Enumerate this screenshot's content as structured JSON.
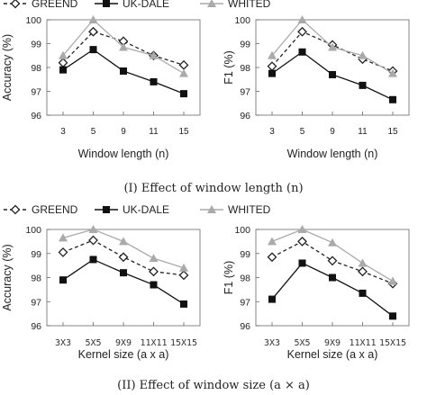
{
  "legend": {
    "items": [
      {
        "name": "GREEND",
        "color": "#222222",
        "marker": "open-diamond",
        "line": "dashed"
      },
      {
        "name": "UK-DALE",
        "color": "#111111",
        "marker": "filled-square",
        "line": "solid"
      },
      {
        "name": "WHITED",
        "color": "#aaaaaa",
        "marker": "filled-triangle",
        "line": "solid"
      }
    ],
    "placement": "top"
  },
  "captions": {
    "top": "(I) Effect of window length (n)",
    "bottom": "(II) Effect of window size (a × a)"
  },
  "chart_data": [
    {
      "type": "line",
      "categories": [
        "3",
        "5",
        "9",
        "11",
        "15"
      ],
      "xlabel": "Window length (n)",
      "ylabel": "Accuracy (%)",
      "ylim": [
        96,
        100
      ],
      "yticks": [
        96,
        97,
        98,
        99,
        100
      ],
      "series": [
        {
          "name": "GREEND",
          "values": [
            98.2,
            99.5,
            99.1,
            98.5,
            98.1
          ]
        },
        {
          "name": "UK-DALE",
          "values": [
            97.9,
            98.75,
            97.85,
            97.4,
            96.9
          ]
        },
        {
          "name": "WHITED",
          "values": [
            98.5,
            100.0,
            98.85,
            98.5,
            97.75
          ]
        }
      ]
    },
    {
      "type": "line",
      "categories": [
        "3",
        "5",
        "9",
        "11",
        "15"
      ],
      "xlabel": "Window length (n)",
      "ylabel": "F1 (%)",
      "ylim": [
        96,
        100
      ],
      "yticks": [
        96,
        97,
        98,
        99,
        100
      ],
      "series": [
        {
          "name": "GREEND",
          "values": [
            98.05,
            99.5,
            98.95,
            98.35,
            97.85
          ]
        },
        {
          "name": "UK-DALE",
          "values": [
            97.75,
            98.65,
            97.7,
            97.25,
            96.65
          ]
        },
        {
          "name": "WHITED",
          "values": [
            98.5,
            100.0,
            98.85,
            98.5,
            97.75
          ]
        }
      ]
    },
    {
      "type": "line",
      "categories": [
        "3X3",
        "5X5",
        "9X9",
        "11X11",
        "15X15"
      ],
      "xlabel": "Kernel size (a x a)",
      "ylabel": "Accuracy (%)",
      "ylim": [
        96,
        100
      ],
      "yticks": [
        96,
        97,
        98,
        99,
        100
      ],
      "series": [
        {
          "name": "GREEND",
          "values": [
            99.05,
            99.55,
            98.85,
            98.25,
            98.1
          ]
        },
        {
          "name": "UK-DALE",
          "values": [
            97.9,
            98.75,
            98.2,
            97.7,
            96.9
          ]
        },
        {
          "name": "WHITED",
          "values": [
            99.65,
            100.0,
            99.5,
            98.8,
            98.4
          ]
        }
      ]
    },
    {
      "type": "line",
      "categories": [
        "3X3",
        "5X5",
        "9X9",
        "11X11",
        "15X15"
      ],
      "xlabel": "Kernel size (a x a)",
      "ylabel": "F1 (%)",
      "ylim": [
        96,
        100
      ],
      "yticks": [
        96,
        97,
        98,
        99,
        100
      ],
      "series": [
        {
          "name": "GREEND",
          "values": [
            98.85,
            99.5,
            98.7,
            98.25,
            97.75
          ]
        },
        {
          "name": "UK-DALE",
          "values": [
            97.1,
            98.6,
            98.0,
            97.35,
            96.4
          ]
        },
        {
          "name": "WHITED",
          "values": [
            99.5,
            100.0,
            99.45,
            98.6,
            97.85
          ]
        }
      ]
    }
  ]
}
